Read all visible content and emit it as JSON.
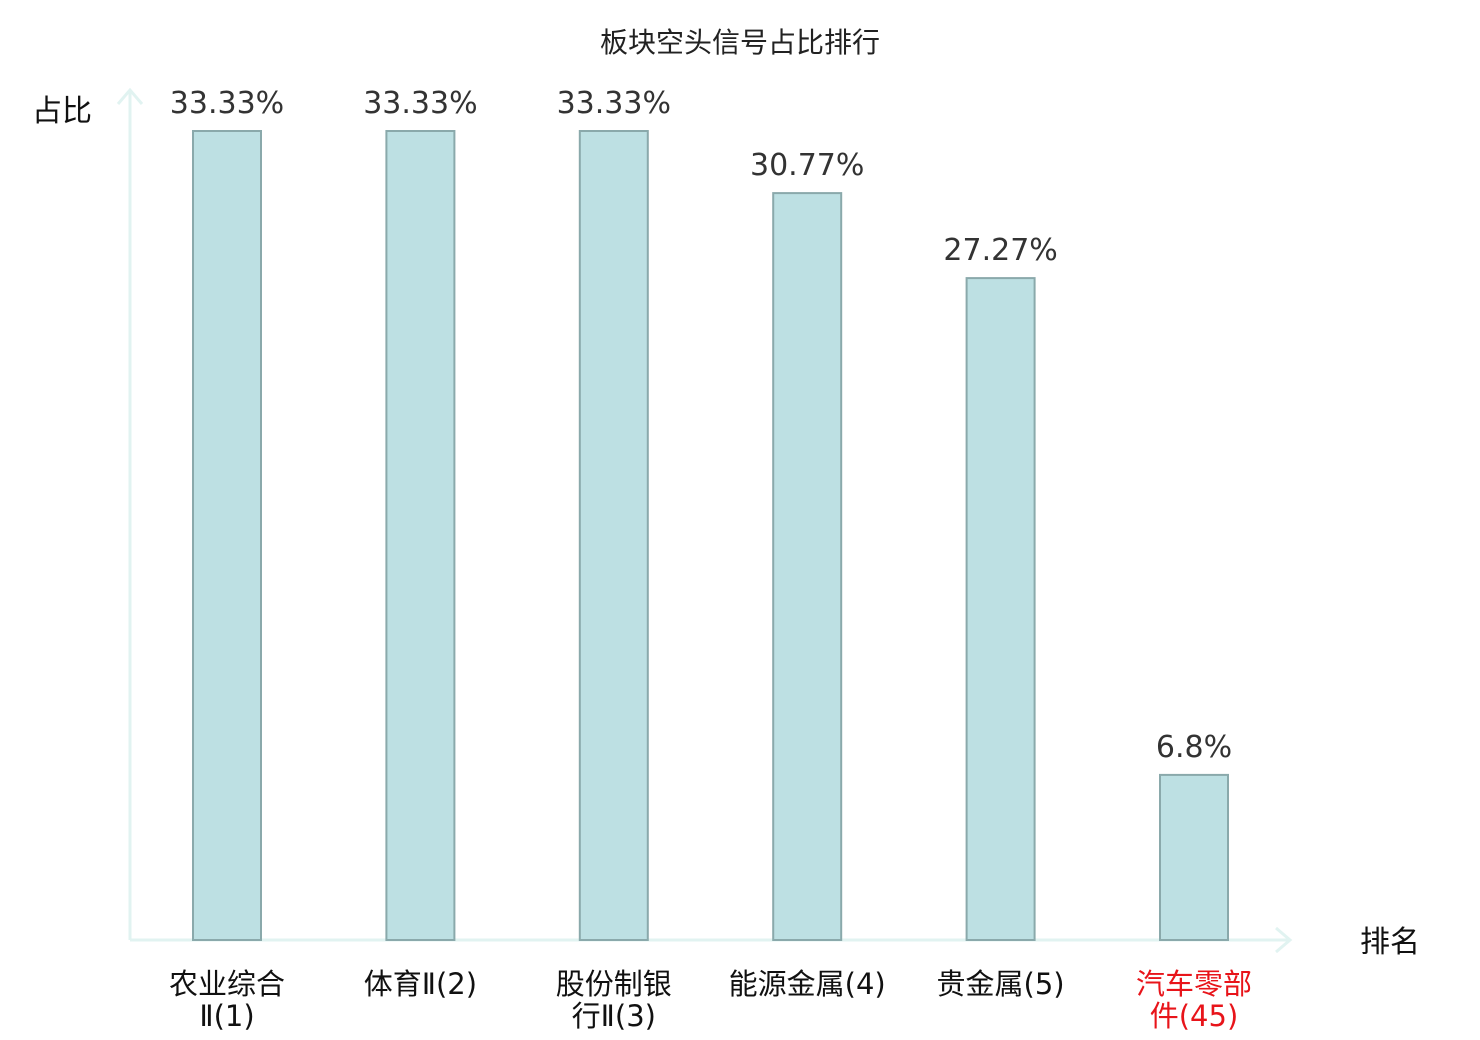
{
  "chart_data": {
    "type": "bar",
    "title": "板块空头信号占比排行",
    "ylabel": "占比",
    "xlabel": "排名",
    "categories": [
      [
        "农业综合",
        "Ⅱ(1)"
      ],
      [
        "体育Ⅱ(2)"
      ],
      [
        "股份制银",
        "行Ⅱ(3)"
      ],
      [
        "能源金属(4)"
      ],
      [
        "贵金属(5)"
      ],
      [
        "汽车零部",
        "件(45)"
      ]
    ],
    "values": [
      33.33,
      33.33,
      33.33,
      30.77,
      27.27,
      6.8
    ],
    "value_labels": [
      "33.33%",
      "33.33%",
      "33.33%",
      "30.77%",
      "27.27%",
      "6.8%"
    ],
    "highlight_index": 5,
    "ylim": [
      0,
      33.33
    ],
    "grid": false,
    "legend": "none",
    "colors": {
      "bar_fill": "#bde0e3",
      "bar_stroke": "#8aa9ab",
      "axis": "#e1f3f1",
      "text": "#111111",
      "value_text": "#333333",
      "highlight": "#e8141a"
    }
  }
}
